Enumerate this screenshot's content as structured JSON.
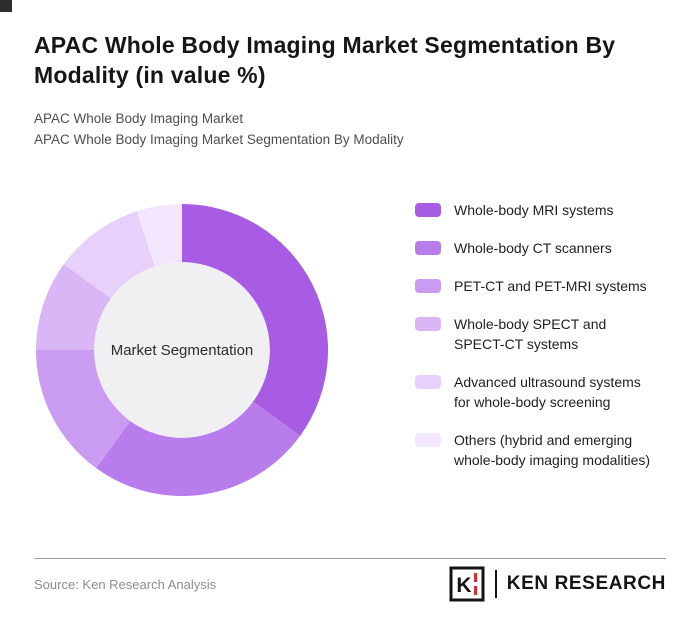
{
  "header": {
    "title": "APAC Whole Body Imaging Market Segmentation By Modality (in value %)",
    "subtitle_line1": "APAC Whole Body Imaging Market",
    "subtitle_line2": "APAC Whole Body Imaging Market Segmentation By Modality"
  },
  "chart_data": {
    "type": "pie",
    "subtype": "donut",
    "title": "APAC Whole Body Imaging Market Segmentation By Modality (in value %)",
    "center_label": "Market Segmentation",
    "unit": "value %",
    "legend_position": "right",
    "categories": [
      "Whole-body MRI systems",
      "Whole-body CT scanners",
      "PET-CT and PET-MRI systems",
      "Whole-body SPECT and SPECT-CT systems",
      "Advanced ultrasound systems for whole-body screening",
      "Others (hybrid and emerging whole-body imaging modalities)"
    ],
    "values": [
      35,
      25,
      15,
      10,
      10,
      5
    ],
    "colors": [
      "#a75ce3",
      "#b87cec",
      "#c99cf2",
      "#d9b7f7",
      "#e7d1fa",
      "#f3e7fd"
    ],
    "center_circle_color": "#f0eff2"
  },
  "footer": {
    "source": "Source: Ken Research Analysis",
    "logo": {
      "mark_letter": "K",
      "text": "KEN RESEARCH",
      "accent_color": "#e8262a"
    }
  }
}
